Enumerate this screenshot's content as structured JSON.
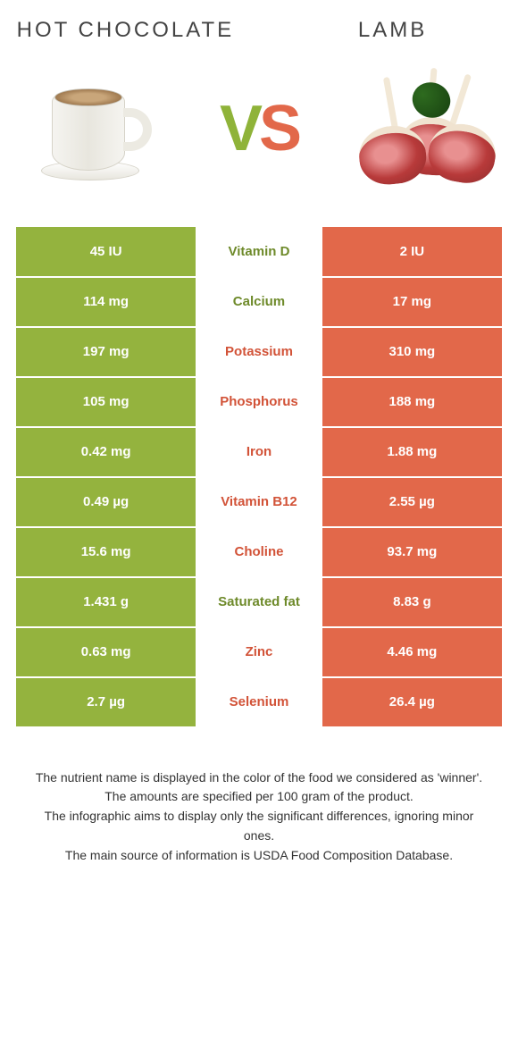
{
  "colors": {
    "left": "#94b33e",
    "right": "#e2684a",
    "left_winner_text": "#6e8a2a",
    "right_winner_text": "#d25338"
  },
  "items": {
    "left_title": "HOT CHOCOLATE",
    "right_title": "LAMB",
    "vs": "VS"
  },
  "rows": [
    {
      "left": "45 IU",
      "label": "Vitamin D",
      "right": "2 IU",
      "winner": "left"
    },
    {
      "left": "114 mg",
      "label": "Calcium",
      "right": "17 mg",
      "winner": "left"
    },
    {
      "left": "197 mg",
      "label": "Potassium",
      "right": "310 mg",
      "winner": "right"
    },
    {
      "left": "105 mg",
      "label": "Phosphorus",
      "right": "188 mg",
      "winner": "right"
    },
    {
      "left": "0.42 mg",
      "label": "Iron",
      "right": "1.88 mg",
      "winner": "right"
    },
    {
      "left": "0.49 µg",
      "label": "Vitamin B12",
      "right": "2.55 µg",
      "winner": "right"
    },
    {
      "left": "15.6 mg",
      "label": "Choline",
      "right": "93.7 mg",
      "winner": "right"
    },
    {
      "left": "1.431 g",
      "label": "Saturated fat",
      "right": "8.83 g",
      "winner": "left"
    },
    {
      "left": "0.63 mg",
      "label": "Zinc",
      "right": "4.46 mg",
      "winner": "right"
    },
    {
      "left": "2.7 µg",
      "label": "Selenium",
      "right": "26.4 µg",
      "winner": "right"
    }
  ],
  "footnotes": [
    "The nutrient name is displayed in the color of the food we considered as 'winner'.",
    "The amounts are specified per 100 gram of the product.",
    "The infographic aims to display only the significant differences, ignoring minor ones.",
    "The main source of information is USDA Food Composition Database."
  ]
}
